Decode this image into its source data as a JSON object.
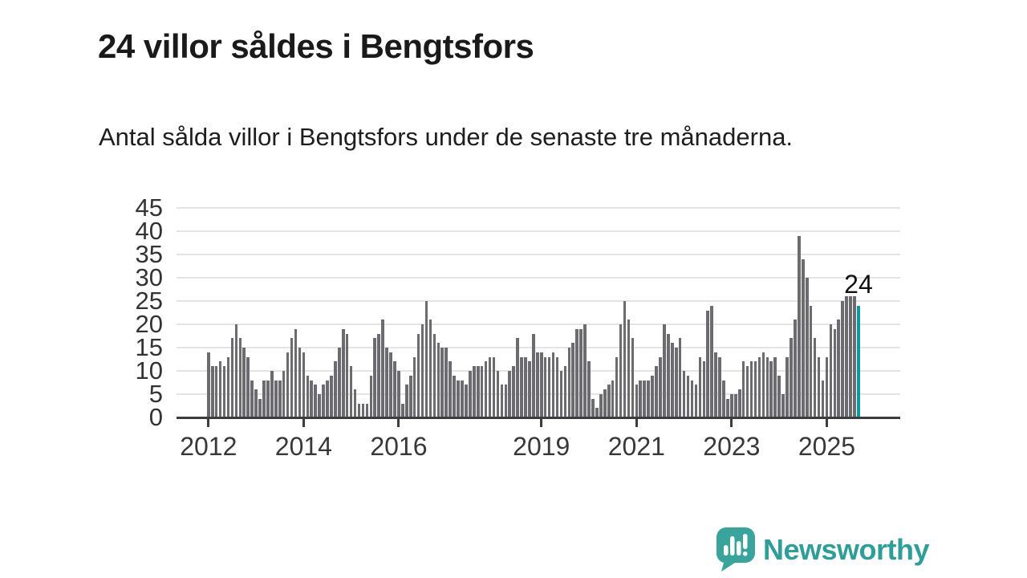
{
  "header": {
    "title": "24 villor såldes i Bengtsfors",
    "subtitle": "Antal sålda villor i Bengtsfors under de senaste tre månaderna."
  },
  "chart_data": {
    "type": "bar",
    "title": "24 villor såldes i Bengtsfors",
    "xlabel": "",
    "ylabel": "",
    "ylim": [
      0,
      45
    ],
    "y_ticks": [
      0,
      5,
      10,
      15,
      20,
      25,
      30,
      35,
      40,
      45
    ],
    "grid": "horizontal",
    "x_start": "2012 (monthly bars)",
    "values": [
      14,
      11,
      11,
      12,
      11,
      13,
      17,
      20,
      17,
      15,
      13,
      8,
      6,
      4,
      8,
      8,
      10,
      8,
      8,
      10,
      14,
      17,
      19,
      15,
      14,
      9,
      8,
      7,
      5,
      7,
      8,
      9,
      12,
      15,
      19,
      18,
      11,
      6,
      3,
      3,
      3,
      9,
      17,
      18,
      21,
      15,
      14,
      12,
      10,
      3,
      7,
      9,
      13,
      18,
      20,
      25,
      21,
      18,
      16,
      15,
      15,
      12,
      9,
      8,
      8,
      7,
      10,
      11,
      11,
      11,
      12,
      13,
      13,
      10,
      7,
      7,
      10,
      11,
      17,
      13,
      13,
      12,
      18,
      14,
      14,
      13,
      13,
      14,
      13,
      10,
      11,
      15,
      16,
      19,
      19,
      20,
      12,
      4,
      2,
      5,
      6,
      7,
      8,
      13,
      20,
      25,
      21,
      17,
      7,
      8,
      8,
      8,
      9,
      11,
      13,
      20,
      18,
      16,
      15,
      17,
      10,
      9,
      8,
      7,
      13,
      12,
      23,
      24,
      14,
      13,
      8,
      4,
      5,
      5,
      6,
      12,
      11,
      12,
      12,
      13,
      14,
      13,
      12,
      13,
      9,
      5,
      13,
      17,
      21,
      39,
      34,
      30,
      24,
      17,
      13,
      8,
      13,
      20,
      19,
      21,
      25,
      26,
      26,
      26,
      24
    ],
    "year_ticks": [
      {
        "label": "2012",
        "index": 0
      },
      {
        "label": "2014",
        "index": 24
      },
      {
        "label": "2016",
        "index": 48
      },
      {
        "label": "2019",
        "index": 84
      },
      {
        "label": "2021",
        "index": 108
      },
      {
        "label": "2023",
        "index": 132
      },
      {
        "label": "2025",
        "index": 156
      }
    ],
    "highlight": {
      "index": 164,
      "label": "24",
      "value": 24
    },
    "colors": {
      "bar": "#6b6b70",
      "accent": "#0c9a9e",
      "axis": "#3d3d3d",
      "grid": "#e4e4e4",
      "brand": "#2f9d98"
    },
    "legend": null
  },
  "footer": {
    "brand": "Newsworthy"
  }
}
